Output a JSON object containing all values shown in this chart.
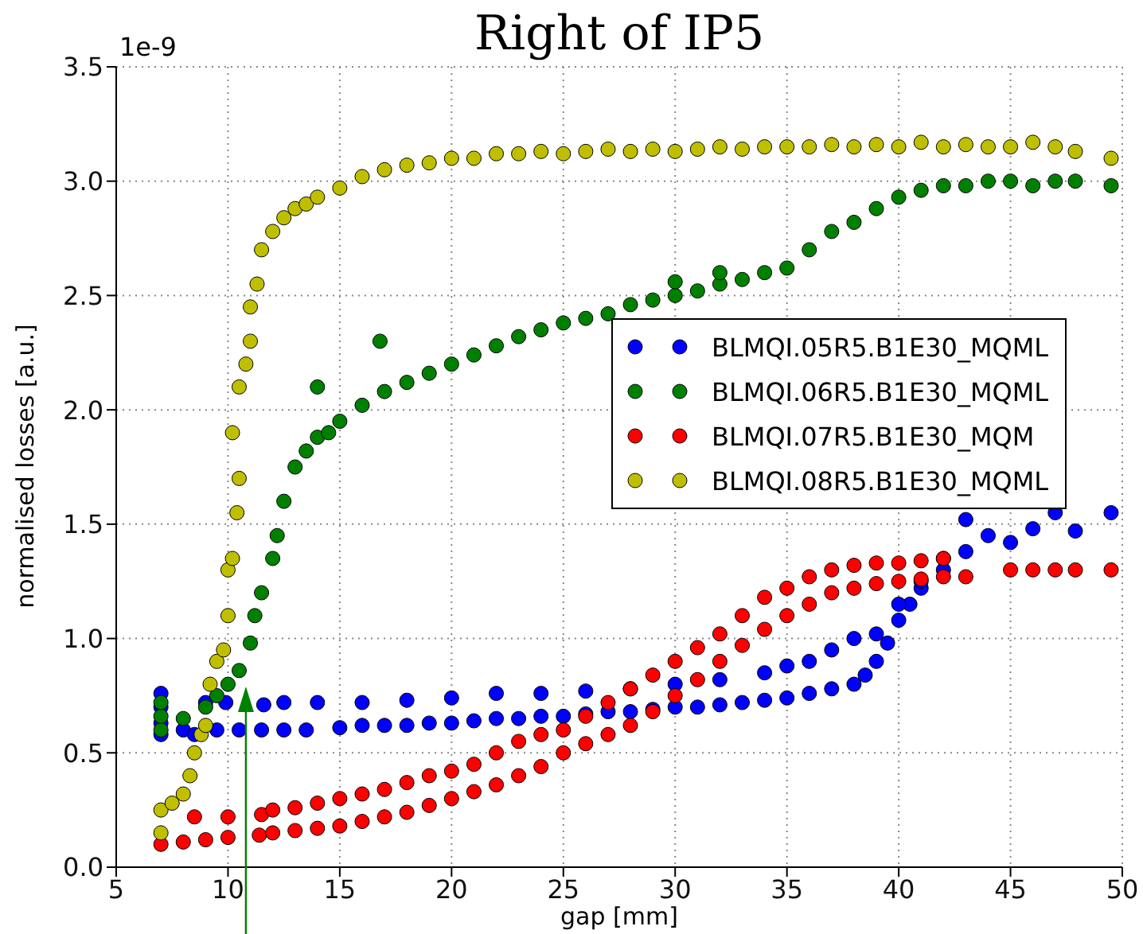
{
  "chart_data": {
    "type": "scatter",
    "title": "Right of IP5",
    "xlabel": "gap [mm]",
    "ylabel": "normalised losses [a.u.]",
    "annotations": [
      "1e-9"
    ],
    "xlim": [
      5,
      50
    ],
    "ylim": [
      0,
      3.5
    ],
    "xticks": [
      5,
      10,
      15,
      20,
      25,
      30,
      35,
      40,
      45,
      50
    ],
    "yticks": [
      {
        "value": 0,
        "label": "0.0"
      },
      {
        "value": 0.5,
        "label": "0.5"
      },
      {
        "value": 1,
        "label": "1.0"
      },
      {
        "value": 1.5,
        "label": "1.5"
      },
      {
        "value": 2,
        "label": "2.0"
      },
      {
        "value": 2.5,
        "label": "2.5"
      },
      {
        "value": 3,
        "label": "3.0"
      },
      {
        "value": 3.5,
        "label": "3.5"
      }
    ],
    "grid": true,
    "legend": "right",
    "marker": "circle",
    "series": [
      {
        "name": "BLMQI.05R5.B1E30_MQML",
        "color": "#0000ff",
        "x": [
          7,
          7,
          7,
          7,
          8,
          8.5,
          9.5,
          10.5,
          11.5,
          12.5,
          13.5,
          15,
          16,
          17,
          18,
          19,
          20,
          21,
          22,
          23,
          24,
          25,
          26,
          27,
          28,
          29,
          30,
          31,
          32,
          33,
          34,
          35,
          36,
          37,
          38,
          38.5,
          39,
          39.5,
          40,
          40.5,
          41,
          42,
          43,
          9,
          9.9,
          11.6,
          12.5,
          14,
          16,
          18,
          20,
          22,
          24,
          26,
          28,
          30,
          32,
          34,
          35,
          36,
          37,
          38,
          39,
          40,
          41,
          42,
          43,
          44,
          45,
          46,
          47,
          47.9,
          49.5
        ],
        "values": [
          0.58,
          0.63,
          0.7,
          0.76,
          0.6,
          0.58,
          0.6,
          0.6,
          0.6,
          0.6,
          0.6,
          0.61,
          0.62,
          0.62,
          0.62,
          0.63,
          0.63,
          0.64,
          0.65,
          0.65,
          0.66,
          0.66,
          0.67,
          0.68,
          0.68,
          0.69,
          0.7,
          0.7,
          0.71,
          0.72,
          0.73,
          0.74,
          0.76,
          0.78,
          0.8,
          0.84,
          0.9,
          0.98,
          1.08,
          1.15,
          1.22,
          1.3,
          1.38,
          0.72,
          0.72,
          0.71,
          0.72,
          0.72,
          0.72,
          0.73,
          0.74,
          0.76,
          0.76,
          0.77,
          0.78,
          0.8,
          0.82,
          0.85,
          0.88,
          0.9,
          0.95,
          1.0,
          1.02,
          1.15,
          1.25,
          1.35,
          1.52,
          1.45,
          1.42,
          1.48,
          1.55,
          1.47,
          1.55
        ]
      },
      {
        "name": "BLMQI.06R5.B1E30_MQML",
        "color": "#008000",
        "x": [
          7,
          7,
          7,
          8,
          9,
          9.5,
          10,
          10.5,
          11,
          11.2,
          11.5,
          12,
          12.2,
          12.5,
          13,
          13.5,
          14,
          14.5,
          15,
          16,
          17,
          18,
          19,
          20,
          21,
          22,
          23,
          24,
          25,
          26,
          27,
          28,
          29,
          30,
          31,
          32,
          33,
          34,
          35,
          36,
          37,
          38,
          39,
          40,
          41,
          42,
          43,
          44,
          45,
          46,
          47,
          47.9,
          49.5,
          14,
          16.8,
          30,
          32
        ],
        "values": [
          0.6,
          0.66,
          0.72,
          0.65,
          0.7,
          0.75,
          0.8,
          0.86,
          0.98,
          1.1,
          1.2,
          1.35,
          1.45,
          1.6,
          1.75,
          1.82,
          1.88,
          1.9,
          1.95,
          2.02,
          2.08,
          2.12,
          2.16,
          2.2,
          2.24,
          2.28,
          2.32,
          2.35,
          2.38,
          2.4,
          2.42,
          2.46,
          2.48,
          2.5,
          2.52,
          2.55,
          2.57,
          2.6,
          2.62,
          2.7,
          2.78,
          2.82,
          2.88,
          2.93,
          2.96,
          2.98,
          2.98,
          3.0,
          3.0,
          2.98,
          3.0,
          3.0,
          2.98,
          2.1,
          2.3,
          2.56,
          2.6
        ]
      },
      {
        "name": "BLMQI.07R5.B1E30_MQM",
        "color": "#ff0000",
        "x": [
          7,
          8,
          9,
          10,
          11.4,
          12,
          13,
          14,
          15,
          16,
          17,
          18,
          19,
          20,
          21,
          22,
          23,
          24,
          25,
          26,
          27,
          28,
          29,
          30,
          31,
          32,
          33,
          34,
          35,
          36,
          37,
          38,
          39,
          40,
          41,
          42,
          43,
          45,
          46,
          47,
          47.9,
          49.5,
          8.5,
          10,
          11.5,
          12,
          13,
          14,
          15,
          16,
          17,
          18,
          19,
          20,
          21,
          22,
          23,
          24,
          25,
          26,
          27,
          28,
          29,
          30,
          31,
          32,
          33,
          34,
          35,
          36,
          37,
          38,
          39,
          40,
          41,
          42
        ],
        "values": [
          0.1,
          0.11,
          0.12,
          0.13,
          0.14,
          0.15,
          0.16,
          0.17,
          0.18,
          0.2,
          0.22,
          0.24,
          0.27,
          0.3,
          0.33,
          0.36,
          0.4,
          0.44,
          0.5,
          0.54,
          0.58,
          0.62,
          0.68,
          0.75,
          0.82,
          0.9,
          0.97,
          1.04,
          1.1,
          1.15,
          1.2,
          1.22,
          1.24,
          1.25,
          1.26,
          1.27,
          1.27,
          1.3,
          1.3,
          1.3,
          1.3,
          1.3,
          0.22,
          0.22,
          0.23,
          0.25,
          0.26,
          0.28,
          0.3,
          0.32,
          0.34,
          0.37,
          0.4,
          0.42,
          0.45,
          0.5,
          0.55,
          0.58,
          0.6,
          0.66,
          0.72,
          0.78,
          0.84,
          0.9,
          0.96,
          1.02,
          1.1,
          1.18,
          1.22,
          1.27,
          1.3,
          1.32,
          1.33,
          1.33,
          1.34,
          1.35
        ]
      },
      {
        "name": "BLMQI.08R5.B1E30_MQML",
        "color": "#bfbf00",
        "x": [
          7,
          7,
          7.5,
          8,
          8.3,
          8.5,
          8.8,
          9,
          9.2,
          9.5,
          9.8,
          10,
          10,
          10.2,
          10.4,
          10.5,
          10.2,
          10.5,
          10.8,
          11,
          11,
          11.3,
          11.5,
          12,
          12.5,
          13,
          13.5,
          14,
          15,
          16,
          17,
          18,
          19,
          20,
          21,
          22,
          23,
          24,
          25,
          26,
          27,
          28,
          29,
          30,
          31,
          32,
          33,
          34,
          35,
          36,
          37,
          38,
          39,
          40,
          41,
          42,
          43,
          44,
          45,
          46,
          47,
          47.9,
          49.5
        ],
        "values": [
          0.15,
          0.25,
          0.28,
          0.32,
          0.4,
          0.5,
          0.58,
          0.62,
          0.8,
          0.9,
          0.95,
          1.1,
          1.3,
          1.35,
          1.55,
          1.7,
          1.9,
          2.1,
          2.2,
          2.3,
          2.45,
          2.55,
          2.7,
          2.78,
          2.84,
          2.88,
          2.9,
          2.93,
          2.97,
          3.02,
          3.05,
          3.07,
          3.08,
          3.1,
          3.1,
          3.12,
          3.12,
          3.13,
          3.12,
          3.13,
          3.14,
          3.13,
          3.14,
          3.13,
          3.14,
          3.15,
          3.14,
          3.15,
          3.15,
          3.15,
          3.16,
          3.15,
          3.16,
          3.15,
          3.17,
          3.15,
          3.16,
          3.15,
          3.15,
          3.17,
          3.15,
          3.13,
          3.1
        ]
      }
    ]
  }
}
